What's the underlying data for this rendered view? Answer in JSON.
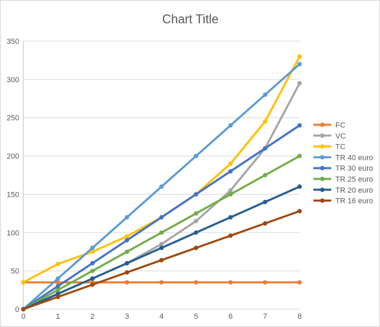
{
  "chart_data": {
    "type": "line",
    "title": "Chart Title",
    "x": [
      0,
      1,
      2,
      3,
      4,
      5,
      6,
      7,
      8
    ],
    "ylim": [
      0,
      350
    ],
    "yticks": [
      0,
      50,
      100,
      150,
      200,
      250,
      300,
      350
    ],
    "grid": true,
    "legend_position": "right",
    "series": [
      {
        "name": "FC",
        "color": "#ed7d31",
        "values": [
          35,
          35,
          35,
          35,
          35,
          35,
          35,
          35,
          35
        ]
      },
      {
        "name": "VC",
        "color": "#a5a5a5",
        "values": [
          0,
          20,
          40,
          60,
          85,
          115,
          155,
          210,
          295
        ]
      },
      {
        "name": "TC",
        "color": "#ffc000",
        "values": [
          35,
          59,
          75,
          95,
          120,
          150,
          190,
          245,
          330
        ]
      },
      {
        "name": "TR 40 euro",
        "color": "#5b9bd5",
        "values": [
          0,
          40,
          80,
          120,
          160,
          200,
          240,
          280,
          320
        ]
      },
      {
        "name": "TR 30 euro",
        "color": "#4472c4",
        "values": [
          0,
          30,
          60,
          90,
          120,
          150,
          180,
          210,
          240
        ]
      },
      {
        "name": "TR 25 euro",
        "color": "#70ad47",
        "values": [
          0,
          25,
          50,
          75,
          100,
          125,
          150,
          175,
          200
        ]
      },
      {
        "name": "TR 20 euro",
        "color": "#255e91",
        "values": [
          0,
          20,
          40,
          60,
          80,
          100,
          120,
          140,
          160
        ]
      },
      {
        "name": "TR 16 euro",
        "color": "#9e480e",
        "values": [
          0,
          16,
          32,
          48,
          64,
          80,
          96,
          112,
          128
        ]
      }
    ]
  }
}
